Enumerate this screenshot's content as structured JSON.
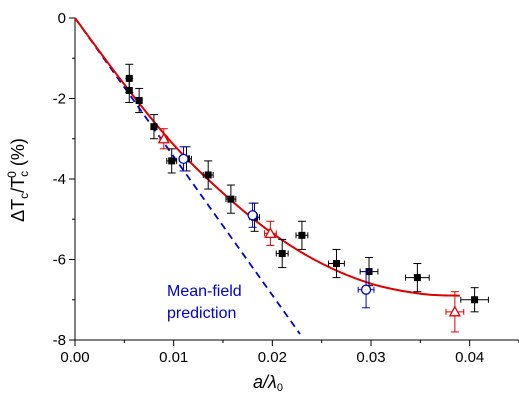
{
  "chart_data": {
    "type": "scatter",
    "xlim": [
      0,
      0.045
    ],
    "ylim": [
      -8,
      0
    ],
    "x_ticks": [
      "0.00",
      "0.01",
      "0.02",
      "0.03",
      "0.04"
    ],
    "x_tick_values": [
      0,
      0.01,
      0.02,
      0.03,
      0.04
    ],
    "y_ticks": [
      "0",
      "-2",
      "-4",
      "-6",
      "-8"
    ],
    "y_tick_values": [
      0,
      -2,
      -4,
      -6,
      -8
    ],
    "xlabel_main": "a/λ",
    "xlabel_sub": "0",
    "ylabel_parts": [
      "ΔT",
      "c",
      "/T",
      "c",
      "0",
      " (%)"
    ],
    "annotation": [
      "Mean-field",
      "prediction"
    ],
    "colors": {
      "black": "#000000",
      "red": "#dd0000",
      "blue": "#0000cc"
    },
    "series": [
      {
        "marker": "filled-square",
        "color": "#000000",
        "points": [
          {
            "x": 0.0055,
            "y": -1.5,
            "xerr": 0.0002,
            "yerr": 0.35
          },
          {
            "x": 0.0055,
            "y": -1.8,
            "xerr": 0.0002,
            "yerr": 0.3
          },
          {
            "x": 0.0065,
            "y": -2.05,
            "xerr": 0.0003,
            "yerr": 0.3
          },
          {
            "x": 0.008,
            "y": -2.7,
            "xerr": 0.0003,
            "yerr": 0.3
          },
          {
            "x": 0.0098,
            "y": -3.55,
            "xerr": 0.0005,
            "yerr": 0.3
          },
          {
            "x": 0.0113,
            "y": -3.5,
            "xerr": 0.0005,
            "yerr": 0.3
          },
          {
            "x": 0.0135,
            "y": -3.9,
            "xerr": 0.0005,
            "yerr": 0.35
          },
          {
            "x": 0.0158,
            "y": -4.5,
            "xerr": 0.0005,
            "yerr": 0.35
          },
          {
            "x": 0.0182,
            "y": -4.95,
            "xerr": 0.0005,
            "yerr": 0.35
          },
          {
            "x": 0.021,
            "y": -5.85,
            "xerr": 0.0006,
            "yerr": 0.35
          },
          {
            "x": 0.023,
            "y": -5.4,
            "xerr": 0.0006,
            "yerr": 0.35
          },
          {
            "x": 0.0265,
            "y": -6.1,
            "xerr": 0.0008,
            "yerr": 0.35
          },
          {
            "x": 0.0298,
            "y": -6.3,
            "xerr": 0.0009,
            "yerr": 0.35
          },
          {
            "x": 0.0347,
            "y": -6.45,
            "xerr": 0.0012,
            "yerr": 0.35
          },
          {
            "x": 0.0405,
            "y": -7.0,
            "xerr": 0.0014,
            "yerr": 0.3
          }
        ]
      },
      {
        "marker": "open-triangle",
        "color": "#dd0000",
        "points": [
          {
            "x": 0.009,
            "y": -3.0,
            "xerr": 0.0004,
            "yerr": 0.25
          },
          {
            "x": 0.0198,
            "y": -5.35,
            "xerr": 0.0006,
            "yerr": 0.3
          },
          {
            "x": 0.0385,
            "y": -7.3,
            "xerr": 0.0009,
            "yerr": 0.5
          }
        ]
      },
      {
        "marker": "open-circle",
        "color": "#0000cc",
        "points": [
          {
            "x": 0.011,
            "y": -3.5,
            "xerr": 0.0004,
            "yerr": 0.3
          },
          {
            "x": 0.018,
            "y": -4.9,
            "xerr": 0.0004,
            "yerr": 0.3
          },
          {
            "x": 0.0295,
            "y": -6.75,
            "xerr": 0.0008,
            "yerr": 0.45
          }
        ]
      }
    ],
    "fit_curve": {
      "color": "#dd0000",
      "style": "solid",
      "points": [
        [
          0,
          0
        ],
        [
          0.005,
          -1.65
        ],
        [
          0.01,
          -3.15
        ],
        [
          0.015,
          -4.35
        ],
        [
          0.02,
          -5.35
        ],
        [
          0.025,
          -6.1
        ],
        [
          0.03,
          -6.6
        ],
        [
          0.035,
          -6.85
        ],
        [
          0.039,
          -6.9
        ]
      ]
    },
    "mean_field_line": {
      "color": "#0000cc",
      "style": "dashed",
      "points": [
        [
          0,
          0
        ],
        [
          0.0228,
          -7.85
        ]
      ]
    }
  }
}
